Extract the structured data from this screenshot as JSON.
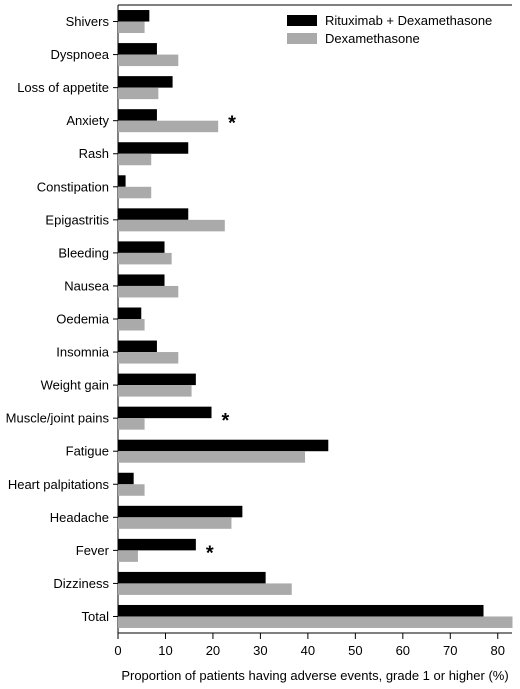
{
  "chart_data": {
    "type": "bar",
    "orientation": "horizontal",
    "categories": [
      "Shivers",
      "Dyspnoea",
      "Loss of appetite",
      "Anxiety",
      "Rash",
      "Constipation",
      "Epigastritis",
      "Bleeding",
      "Nausea",
      "Oedemia",
      "Insomnia",
      "Weight gain",
      "Muscle/joint pains",
      "Fatigue",
      "Heart palpitations",
      "Headache",
      "Fever",
      "Dizziness",
      "Total"
    ],
    "series": [
      {
        "name": "Rituximab + Dexamethasone",
        "color": "#000000",
        "values": [
          6.6,
          8.2,
          11.5,
          8.2,
          14.8,
          1.6,
          14.8,
          9.8,
          9.8,
          4.9,
          8.2,
          16.4,
          19.7,
          44.3,
          3.3,
          26.2,
          16.4,
          31.1,
          77.0
        ]
      },
      {
        "name": "Dexamethasone",
        "color": "#aaaaaa",
        "values": [
          5.6,
          12.7,
          8.5,
          21.1,
          7.0,
          7.0,
          22.5,
          11.3,
          12.7,
          5.6,
          12.7,
          15.5,
          5.6,
          39.4,
          5.6,
          23.9,
          4.2,
          36.6,
          83.1
        ]
      }
    ],
    "significant": [
      {
        "category": "Anxiety",
        "marker": "*"
      },
      {
        "category": "Muscle/joint pains",
        "marker": "*"
      },
      {
        "category": "Fever",
        "marker": "*"
      }
    ],
    "xlabel": "Proportion of patients having adverse events, grade 1 or higher (%)",
    "ylabel": "",
    "xlim": [
      0,
      83
    ],
    "xticks": [
      0,
      10,
      20,
      30,
      40,
      50,
      60,
      70,
      80
    ],
    "grid": false,
    "legend_position": "top-right"
  }
}
